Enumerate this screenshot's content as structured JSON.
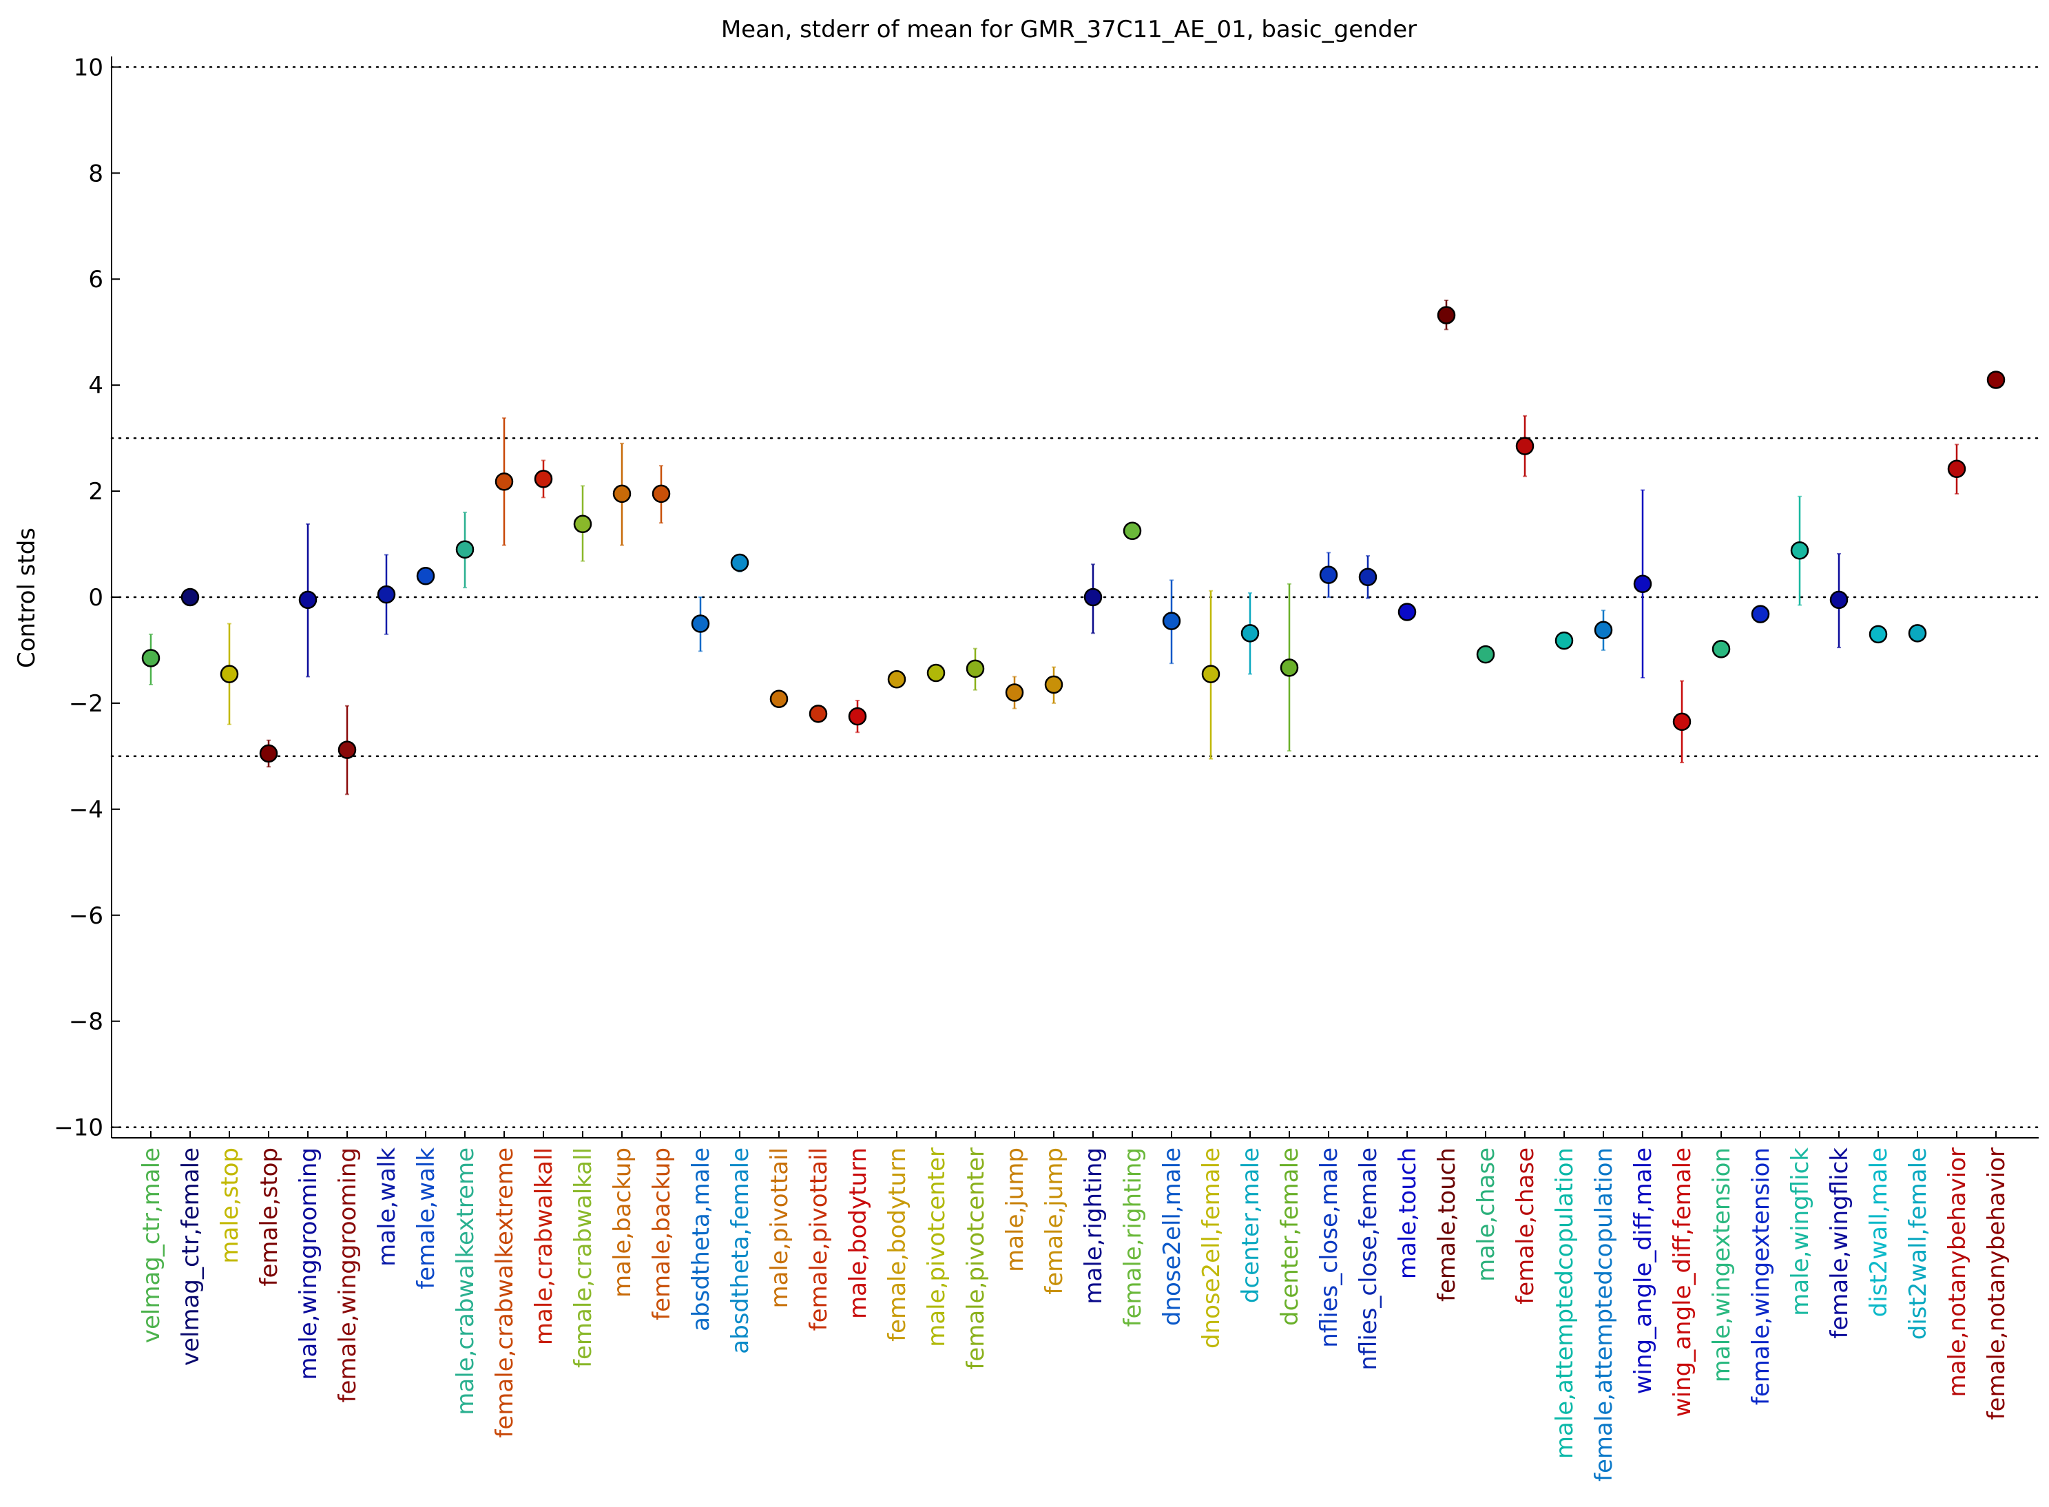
{
  "chart_data": {
    "type": "scatter",
    "title": "Mean, stderr of mean for GMR_37C11_AE_01, basic_gender",
    "xlabel": "",
    "ylabel": "Control stds",
    "ylim": [
      -10.2,
      10.2
    ],
    "yticks": [
      -10,
      -8,
      -6,
      -4,
      -2,
      0,
      2,
      4,
      6,
      8,
      10
    ],
    "ytick_labels": [
      "−10",
      "−8",
      "−6",
      "−4",
      "−2",
      "0",
      "2",
      "4",
      "6",
      "8",
      "10"
    ],
    "reference_lines": [
      -10,
      -3,
      0,
      3,
      10
    ],
    "grid": false,
    "legend": "none",
    "points": [
      {
        "label": "velmag_ctr,male",
        "mean": -1.15,
        "lo": -1.65,
        "hi": -0.7,
        "color": "#4cb24c"
      },
      {
        "label": "velmag_ctr,female",
        "mean": 0.0,
        "lo": 0.0,
        "hi": 0.0,
        "color": "#0a0a6e"
      },
      {
        "label": "male,stop",
        "mean": -1.45,
        "lo": -2.4,
        "hi": -0.5,
        "color": "#c2b800"
      },
      {
        "label": "female,stop",
        "mean": -2.95,
        "lo": -3.2,
        "hi": -2.7,
        "color": "#7a0000"
      },
      {
        "label": "male,winggrooming",
        "mean": -0.05,
        "lo": -1.5,
        "hi": 1.38,
        "color": "#0a0a9a"
      },
      {
        "label": "female,winggrooming",
        "mean": -2.88,
        "lo": -3.72,
        "hi": -2.05,
        "color": "#8a0a0a"
      },
      {
        "label": "male,walk",
        "mean": 0.05,
        "lo": -0.7,
        "hi": 0.8,
        "color": "#0a1aa8"
      },
      {
        "label": "female,walk",
        "mean": 0.4,
        "lo": 0.25,
        "hi": 0.55,
        "color": "#0a48c8"
      },
      {
        "label": "male,crabwalkextreme",
        "mean": 0.9,
        "lo": 0.18,
        "hi": 1.6,
        "color": "#2ab090"
      },
      {
        "label": "female,crabwalkextreme",
        "mean": 2.18,
        "lo": 0.98,
        "hi": 3.38,
        "color": "#c84808"
      },
      {
        "label": "male,crabwalkall",
        "mean": 2.23,
        "lo": 1.88,
        "hi": 2.58,
        "color": "#c81e08"
      },
      {
        "label": "female,crabwalkall",
        "mean": 1.38,
        "lo": 0.68,
        "hi": 2.1,
        "color": "#8ab82a"
      },
      {
        "label": "male,backup",
        "mean": 1.95,
        "lo": 0.98,
        "hi": 2.9,
        "color": "#c86a08"
      },
      {
        "label": "female,backup",
        "mean": 1.95,
        "lo": 1.4,
        "hi": 2.48,
        "color": "#c85008"
      },
      {
        "label": "absdtheta,male",
        "mean": -0.5,
        "lo": -1.02,
        "hi": 0.0,
        "color": "#0a6ac8"
      },
      {
        "label": "absdtheta,female",
        "mean": 0.65,
        "lo": 0.48,
        "hi": 0.8,
        "color": "#0a8ac8"
      },
      {
        "label": "male,pivottail",
        "mean": -1.92,
        "lo": -2.02,
        "hi": -1.82,
        "color": "#c87008"
      },
      {
        "label": "female,pivottail",
        "mean": -2.2,
        "lo": -2.28,
        "hi": -2.12,
        "color": "#c83008"
      },
      {
        "label": "male,bodyturn",
        "mean": -2.25,
        "lo": -2.55,
        "hi": -1.95,
        "color": "#c80a0a"
      },
      {
        "label": "female,bodyturn",
        "mean": -1.55,
        "lo": -1.65,
        "hi": -1.45,
        "color": "#c89a08"
      },
      {
        "label": "male,pivotcenter",
        "mean": -1.43,
        "lo": -1.53,
        "hi": -1.33,
        "color": "#b0b808"
      },
      {
        "label": "female,pivotcenter",
        "mean": -1.35,
        "lo": -1.75,
        "hi": -0.97,
        "color": "#8ab01a"
      },
      {
        "label": "male,jump",
        "mean": -1.8,
        "lo": -2.1,
        "hi": -1.5,
        "color": "#c88008"
      },
      {
        "label": "female,jump",
        "mean": -1.65,
        "lo": -2.0,
        "hi": -1.32,
        "color": "#c89008"
      },
      {
        "label": "male,righting",
        "mean": 0.0,
        "lo": -0.68,
        "hi": 0.62,
        "color": "#0a0a8a"
      },
      {
        "label": "female,righting",
        "mean": 1.25,
        "lo": 1.15,
        "hi": 1.35,
        "color": "#6ab83a"
      },
      {
        "label": "dnose2ell,male",
        "mean": -0.45,
        "lo": -1.25,
        "hi": 0.32,
        "color": "#0a58c8"
      },
      {
        "label": "dnose2ell,female",
        "mean": -1.45,
        "lo": -3.05,
        "hi": 0.12,
        "color": "#c0b808"
      },
      {
        "label": "dcenter,male",
        "mean": -0.68,
        "lo": -1.45,
        "hi": 0.08,
        "color": "#0aa8c0"
      },
      {
        "label": "dcenter,female",
        "mean": -1.33,
        "lo": -2.9,
        "hi": 0.25,
        "color": "#6ab02a"
      },
      {
        "label": "nflies_close,male",
        "mean": 0.42,
        "lo": 0.0,
        "hi": 0.84,
        "color": "#0a38c0"
      },
      {
        "label": "nflies_close,female",
        "mean": 0.38,
        "lo": -0.02,
        "hi": 0.78,
        "color": "#0a28b0"
      },
      {
        "label": "male,touch",
        "mean": -0.28,
        "lo": -0.38,
        "hi": -0.18,
        "color": "#0a0ac8"
      },
      {
        "label": "female,touch",
        "mean": 5.32,
        "lo": 5.05,
        "hi": 5.6,
        "color": "#6a0000"
      },
      {
        "label": "male,chase",
        "mean": -1.08,
        "lo": -1.18,
        "hi": -0.98,
        "color": "#2ab07a"
      },
      {
        "label": "female,chase",
        "mean": 2.85,
        "lo": 2.28,
        "hi": 3.42,
        "color": "#b80a0a"
      },
      {
        "label": "male,attemptedcopulation",
        "mean": -0.82,
        "lo": -0.92,
        "hi": -0.72,
        "color": "#0ab8a8"
      },
      {
        "label": "female,attemptedcopulation",
        "mean": -0.62,
        "lo": -1.0,
        "hi": -0.25,
        "color": "#0a78c8"
      },
      {
        "label": "wing_angle_diff,male",
        "mean": 0.25,
        "lo": -1.52,
        "hi": 2.02,
        "color": "#0a0ac0"
      },
      {
        "label": "wing_angle_diff,female",
        "mean": -2.35,
        "lo": -3.12,
        "hi": -1.58,
        "color": "#c80a0a"
      },
      {
        "label": "male,wingextension",
        "mean": -0.98,
        "lo": -1.08,
        "hi": -0.88,
        "color": "#2ab880"
      },
      {
        "label": "female,wingextension",
        "mean": -0.32,
        "lo": -0.42,
        "hi": -0.22,
        "color": "#0a28c8"
      },
      {
        "label": "male,wingflick",
        "mean": 0.88,
        "lo": -0.15,
        "hi": 1.9,
        "color": "#18b8a0"
      },
      {
        "label": "female,wingflick",
        "mean": -0.05,
        "lo": -0.95,
        "hi": 0.82,
        "color": "#0a0a9a"
      },
      {
        "label": "dist2wall,male",
        "mean": -0.7,
        "lo": -0.78,
        "hi": -0.62,
        "color": "#0ab8c8"
      },
      {
        "label": "dist2wall,female",
        "mean": -0.68,
        "lo": -0.76,
        "hi": -0.6,
        "color": "#0aa8c0"
      },
      {
        "label": "male,notanybehavior",
        "mean": 2.42,
        "lo": 1.95,
        "hi": 2.88,
        "color": "#b80a0a"
      },
      {
        "label": "female,notanybehavior",
        "mean": 4.1,
        "lo": 4.02,
        "hi": 4.18,
        "color": "#8a0000"
      }
    ]
  }
}
